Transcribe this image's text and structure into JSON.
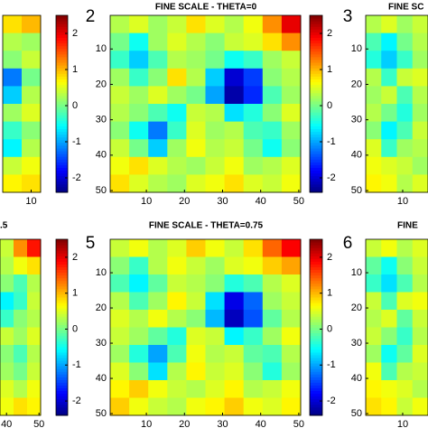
{
  "chart_data": [
    {
      "type": "heatmap",
      "xlim": [
        8.5,
        10.5
      ],
      "ylim": [
        0.5,
        50.5
      ],
      "xticks": [
        10
      ],
      "yticks": [],
      "clim": [
        -2.4,
        2.5
      ],
      "cticks": [
        -2,
        -1,
        0,
        1,
        2
      ],
      "values": [
        [
          0.8,
          1.0
        ],
        [
          0.3,
          0.2
        ],
        [
          0.1,
          0.4
        ],
        [
          -1.2,
          0.0
        ],
        [
          -0.8,
          0.3
        ],
        [
          0.2,
          0.5
        ],
        [
          -0.3,
          0.1
        ],
        [
          -0.6,
          0.3
        ],
        [
          0.4,
          0.6
        ],
        [
          0.7,
          0.8
        ]
      ]
    },
    {
      "type": "heatmap",
      "title": "FINE SCALE - THETA=0",
      "panel_label": "2",
      "xlim": [
        0.5,
        50.5
      ],
      "ylim": [
        0.5,
        50.5
      ],
      "xticks": [
        10,
        20,
        30,
        40,
        50
      ],
      "yticks": [
        10,
        20,
        30,
        40,
        50
      ],
      "clim": [
        -2.4,
        2.5
      ],
      "cticks": [
        -2,
        -1,
        0,
        1,
        2
      ],
      "values": [
        [
          0.3,
          0.5,
          0.2,
          0.4,
          0.8,
          0.5,
          0.3,
          0.6,
          1.2,
          2.0
        ],
        [
          0,
          -0.5,
          0.2,
          0.5,
          0.3,
          0.1,
          0.4,
          0.5,
          0.8,
          1.2
        ],
        [
          -0.3,
          -0.8,
          -0.2,
          0.3,
          0.2,
          0,
          -0.5,
          -0.3,
          0.2,
          0.4
        ],
        [
          0.2,
          -0.3,
          0.1,
          0.8,
          0.3,
          -0.8,
          -2.0,
          -1.5,
          0.1,
          0.3
        ],
        [
          0.4,
          0.2,
          0.5,
          0.2,
          0,
          -1.0,
          -2.2,
          -1.6,
          -0.2,
          0.2
        ],
        [
          0.3,
          0.1,
          -0.2,
          -0.5,
          0.4,
          0.3,
          -0.7,
          -0.4,
          0.1,
          0.5
        ],
        [
          0.1,
          -0.5,
          -1.2,
          -0.3,
          0.5,
          0.2,
          0.3,
          -0.2,
          -0.3,
          0.2
        ],
        [
          0.4,
          0,
          -0.8,
          0.2,
          0.6,
          0.3,
          0.4,
          0,
          -0.5,
          0.1
        ],
        [
          0.6,
          0.8,
          0.5,
          0.3,
          0.2,
          0.4,
          0.6,
          0.2,
          0.3,
          0.5
        ],
        [
          0.8,
          0.5,
          0.3,
          0.2,
          0.5,
          0.6,
          0.8,
          0.5,
          0.4,
          0.6
        ]
      ]
    },
    {
      "type": "heatmap",
      "title": "FINE SC",
      "panel_label": "3",
      "xlim": [
        0.5,
        16.5
      ],
      "ylim": [
        0.5,
        50.5
      ],
      "xticks": [
        10
      ],
      "yticks": [
        10,
        20,
        30,
        40,
        50
      ],
      "values": [
        [
          0.3,
          0.5,
          0.2,
          0.4
        ],
        [
          -0.2,
          -0.6,
          0,
          0.3
        ],
        [
          -0.4,
          -0.8,
          -0.3,
          0.2
        ],
        [
          0.3,
          -0.3,
          0.4,
          0.5
        ],
        [
          0.2,
          0.4,
          -0.2,
          0.3
        ],
        [
          0.3,
          0,
          -0.4,
          0.2
        ],
        [
          0.1,
          -0.6,
          -0.2,
          0.4
        ],
        [
          0.5,
          -0.3,
          0.2,
          0.3
        ],
        [
          0.6,
          0.5,
          0.4,
          0.2
        ],
        [
          0.7,
          0.6,
          0.3,
          0.5
        ]
      ]
    },
    {
      "type": "heatmap",
      "title": ".5",
      "xlim": [
        38,
        50.5
      ],
      "ylim": [
        0.5,
        50.5
      ],
      "xticks": [
        40,
        50
      ],
      "yticks": [],
      "clim": [
        -2.4,
        2.5
      ],
      "cticks": [
        -2,
        -1,
        0,
        1,
        2
      ],
      "values": [
        [
          0.4,
          1.2,
          1.8
        ],
        [
          0.3,
          0.6,
          0.8
        ],
        [
          0.1,
          -0.2,
          0.3
        ],
        [
          -0.6,
          -0.3,
          0.4
        ],
        [
          -0.3,
          0.1,
          0.3
        ],
        [
          0.4,
          0.2,
          0.5
        ],
        [
          0.1,
          -0.2,
          0.3
        ],
        [
          0.2,
          0,
          0.4
        ],
        [
          0.5,
          0.3,
          0.6
        ],
        [
          0.6,
          0.8,
          0.7
        ]
      ]
    },
    {
      "type": "heatmap",
      "title": "FINE SCALE - THETA=0.75",
      "panel_label": "5",
      "xlim": [
        0.5,
        50.5
      ],
      "ylim": [
        0.5,
        50.5
      ],
      "xticks": [
        10,
        20,
        30,
        40,
        50
      ],
      "yticks": [
        10,
        20,
        30,
        40,
        50
      ],
      "clim": [
        -2.4,
        2.5
      ],
      "cticks": [
        -2,
        -1,
        0,
        1,
        2
      ],
      "values": [
        [
          0.4,
          0.6,
          0.3,
          0.5,
          0.9,
          0.6,
          0.4,
          0.8,
          1.4,
          1.9
        ],
        [
          0.1,
          -0.3,
          0.3,
          0.6,
          0.4,
          0.2,
          0.5,
          0.6,
          0.9,
          1.1
        ],
        [
          -0.2,
          -0.6,
          -0.1,
          0.4,
          0.3,
          0.1,
          -0.4,
          -0.2,
          0.3,
          0.5
        ],
        [
          0.3,
          -0.2,
          0.2,
          0.7,
          0.4,
          -0.7,
          -1.9,
          -1.3,
          0.2,
          0.4
        ],
        [
          0.5,
          0.3,
          0.6,
          0.3,
          0.1,
          -0.9,
          -2.1,
          -1.4,
          -0.1,
          0.3
        ],
        [
          0.4,
          0.2,
          -0.1,
          -0.4,
          0.5,
          0.4,
          -0.6,
          -0.3,
          0.2,
          0.6
        ],
        [
          0.2,
          -0.4,
          -1.0,
          -0.2,
          0.6,
          0.3,
          0.4,
          -0.1,
          -0.2,
          0.3
        ],
        [
          0.5,
          0.1,
          -0.7,
          0.3,
          0.7,
          0.4,
          0.5,
          0.1,
          -0.4,
          0.2
        ],
        [
          0.7,
          0.9,
          0.6,
          0.4,
          0.3,
          0.5,
          0.7,
          0.3,
          0.4,
          0.6
        ],
        [
          0.9,
          0.6,
          0.4,
          0.3,
          0.6,
          0.7,
          0.9,
          0.6,
          0.5,
          0.7
        ]
      ]
    },
    {
      "type": "heatmap",
      "title": "FINE",
      "panel_label": "6",
      "xlim": [
        0.5,
        16.5
      ],
      "ylim": [
        0.5,
        50.5
      ],
      "xticks": [
        10
      ],
      "yticks": [
        10,
        20,
        30,
        40,
        50
      ],
      "values": [
        [
          0.4,
          0.6,
          0.3,
          0.5
        ],
        [
          -0.1,
          -0.5,
          0.1,
          0.4
        ],
        [
          -0.3,
          -0.7,
          -0.2,
          0.3
        ],
        [
          0.4,
          -0.2,
          0.5,
          0.6
        ],
        [
          0.3,
          0.5,
          -0.1,
          0.4
        ],
        [
          0.4,
          0.1,
          -0.3,
          0.3
        ],
        [
          0.2,
          -0.5,
          -0.1,
          0.5
        ],
        [
          0.6,
          -0.2,
          0.3,
          0.4
        ],
        [
          0.7,
          0.6,
          0.5,
          0.3
        ],
        [
          0.8,
          0.7,
          0.4,
          0.6
        ]
      ]
    }
  ]
}
